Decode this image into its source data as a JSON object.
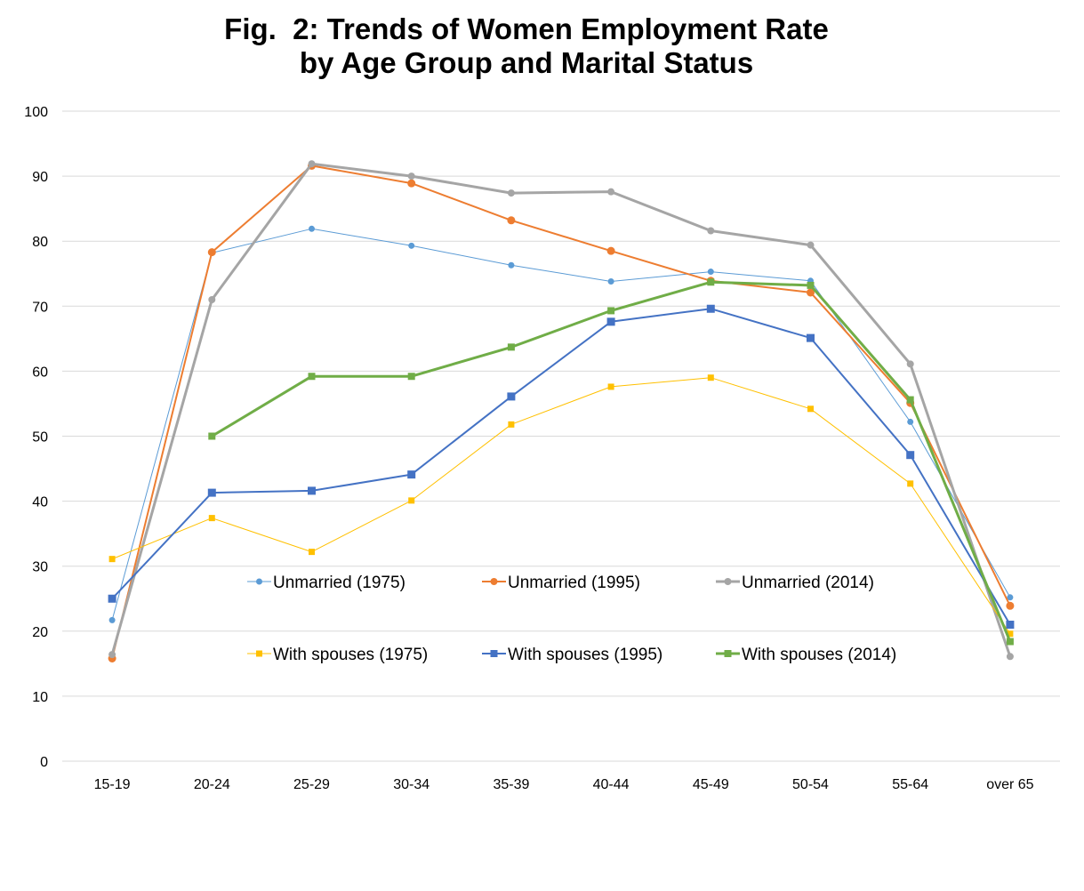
{
  "chart_data": {
    "type": "line",
    "title": "Fig.  2: Trends of Women Employment Rate",
    "subtitle": "by Age Group and Marital Status",
    "xlabel": "",
    "ylabel": "",
    "ylim": [
      0,
      100
    ],
    "yticks": [
      0,
      10,
      20,
      30,
      40,
      50,
      60,
      70,
      80,
      90,
      100
    ],
    "grid": true,
    "legend_placement": "inside-center",
    "categories": [
      "15-19",
      "20-24",
      "25-29",
      "30-34",
      "35-39",
      "40-44",
      "45-49",
      "50-54",
      "55-64",
      "over 65"
    ],
    "series": [
      {
        "name": "Unmarried (1975)",
        "color": "#5B9BD5",
        "marker": "circle",
        "width": 1,
        "values": [
          21.7,
          78.2,
          81.9,
          79.3,
          76.3,
          73.8,
          75.3,
          73.9,
          52.2,
          25.2
        ]
      },
      {
        "name": "Unmarried (1995)",
        "color": "#ED7D31",
        "marker": "circle",
        "width": 2,
        "values": [
          15.8,
          78.3,
          91.6,
          88.9,
          83.2,
          78.5,
          73.9,
          72.1,
          55.1,
          23.9
        ]
      },
      {
        "name": "Unmarried (2014)",
        "color": "#A5A5A5",
        "marker": "circle",
        "width": 3,
        "values": [
          16.4,
          71.0,
          91.9,
          90.0,
          87.4,
          87.6,
          81.6,
          79.4,
          61.1,
          16.1
        ]
      },
      {
        "name": "With spouses (1975)",
        "color": "#FFC000",
        "marker": "square",
        "width": 1,
        "values": [
          31.1,
          37.4,
          32.2,
          40.1,
          51.8,
          57.6,
          59.0,
          54.2,
          42.7,
          19.6
        ]
      },
      {
        "name": "With spouses (1995)",
        "color": "#4472C4",
        "marker": "square",
        "width": 2,
        "values": [
          25.0,
          41.3,
          41.6,
          44.1,
          56.1,
          67.6,
          69.6,
          65.1,
          47.1,
          21.0
        ]
      },
      {
        "name": "With spouses (2014)",
        "color": "#70AD47",
        "marker": "square",
        "width": 3,
        "values": [
          null,
          50.0,
          59.2,
          59.2,
          63.7,
          69.3,
          73.7,
          73.2,
          55.6,
          18.4
        ]
      }
    ]
  }
}
